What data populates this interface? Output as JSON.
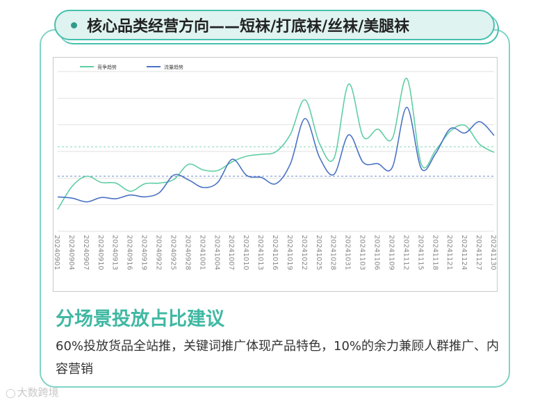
{
  "header": {
    "title": "核心品类经营方向——短袜/打底袜/丝袜/美腿袜"
  },
  "section": {
    "title": "分场景投放占比建议",
    "body": "60%投放货品全站推，关键词推广体现产品特色，10%的余力兼顾人群推广、内容营销"
  },
  "watermark": {
    "text": "大数跨境"
  },
  "colors": {
    "competition": "#5fcea4",
    "traffic": "#4a72c4",
    "accent": "#3fb8a2"
  },
  "chart_data": {
    "type": "line",
    "x": [
      "20240901",
      "20240904",
      "20240907",
      "20240910",
      "20240913",
      "20240916",
      "20240919",
      "20240922",
      "20240925",
      "20240928",
      "20241001",
      "20241004",
      "20241007",
      "20241010",
      "20241013",
      "20241016",
      "20241019",
      "20241022",
      "20241025",
      "20241028",
      "20241031",
      "20241103",
      "20241106",
      "20241109",
      "20241112",
      "20241115",
      "20241118",
      "20241121",
      "20241124",
      "20241127",
      "20241130"
    ],
    "series": [
      {
        "name": "竞争趋势",
        "values": [
          5,
          42,
          58,
          48,
          47,
          34,
          46,
          47,
          53,
          77,
          68,
          67,
          81,
          90,
          93,
          97,
          125,
          180,
          110,
          87,
          205,
          121,
          133,
          118,
          214,
          77,
          100,
          130,
          139,
          109,
          96
        ]
      },
      {
        "name": "流量趋势",
        "values": [
          25,
          23,
          17,
          24,
          22,
          28,
          25,
          32,
          60,
          52,
          40,
          48,
          85,
          59,
          56,
          46,
          78,
          150,
          88,
          61,
          124,
          80,
          78,
          72,
          168,
          70,
          95,
          134,
          127,
          145,
          123
        ]
      }
    ],
    "reference_lines": [
      105,
      58
    ],
    "xlabel": "",
    "ylabel": "",
    "ylim": [
      -30,
      225
    ],
    "grid": true,
    "legend": "top-left"
  }
}
